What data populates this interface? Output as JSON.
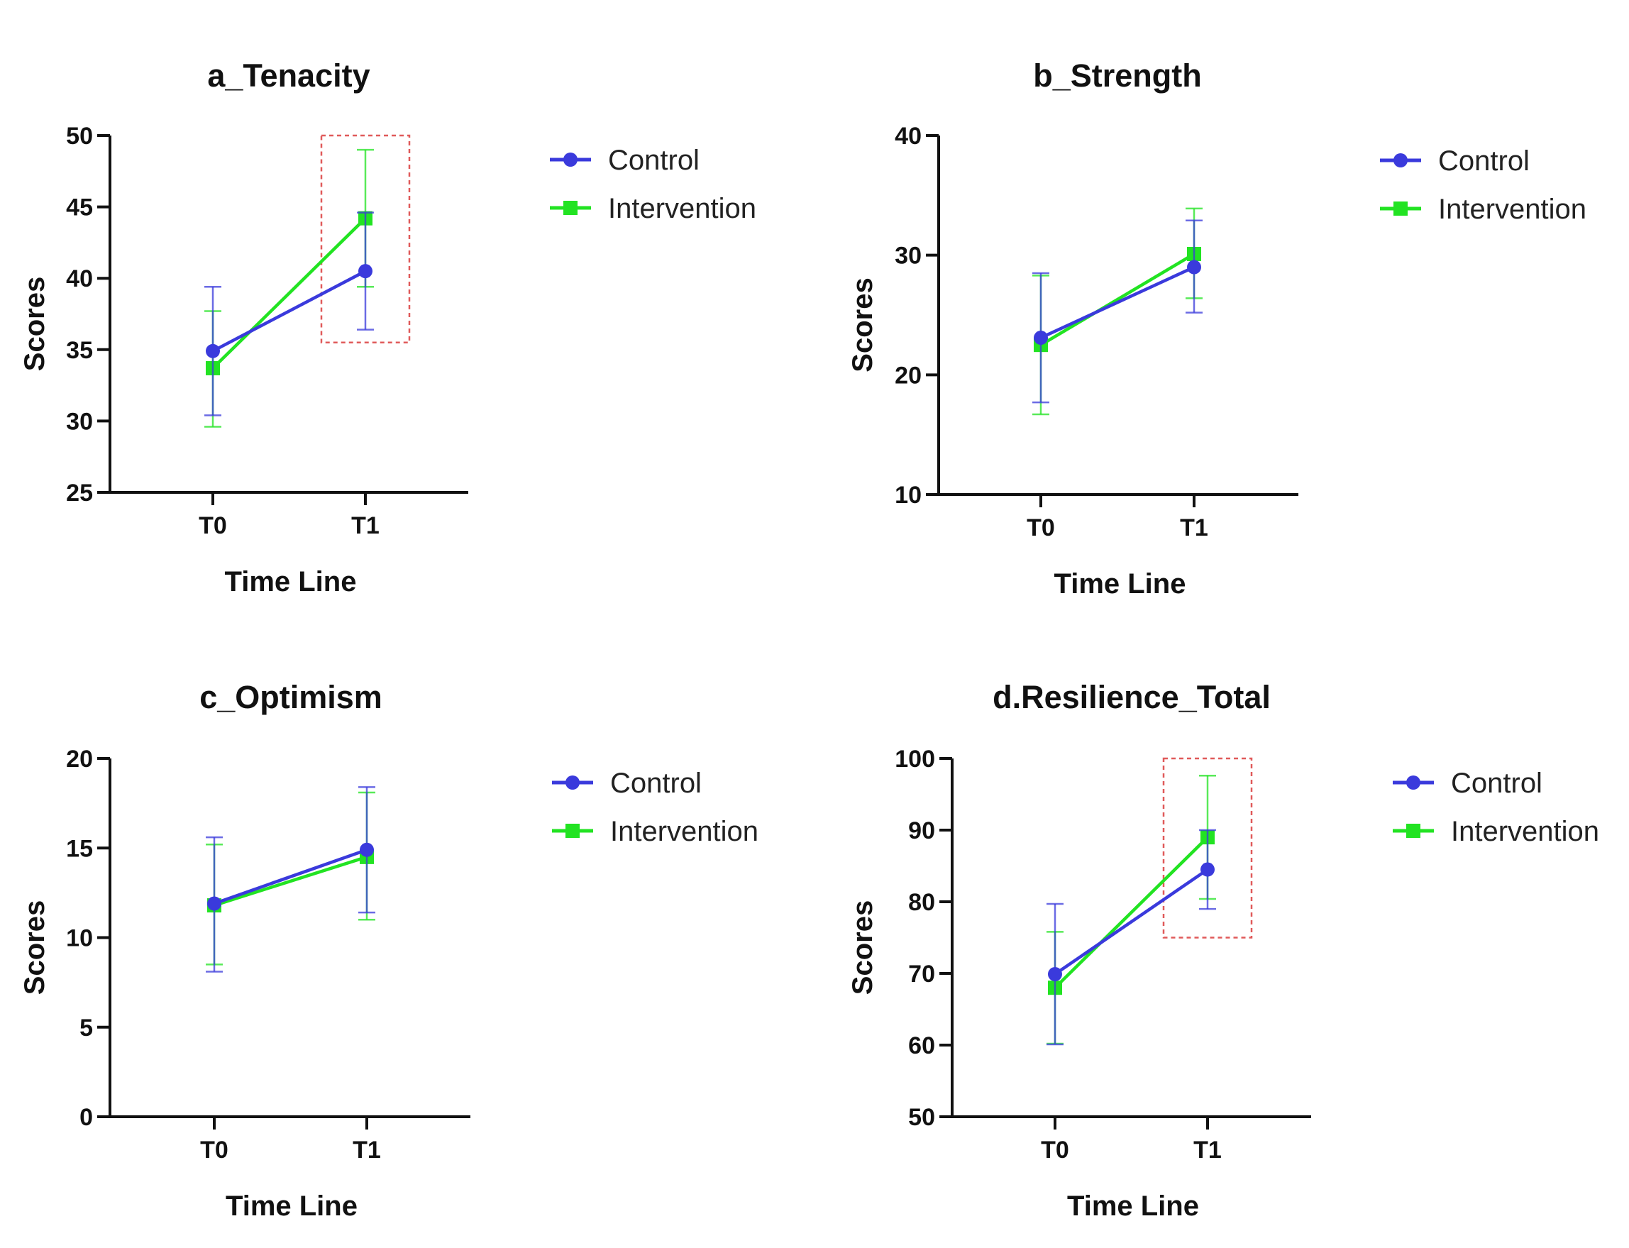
{
  "colors": {
    "control": "#3a3adc",
    "intervention": "#22e322",
    "axis": "#111111",
    "highlight_box": "#e05a5a"
  },
  "chart_data": [
    {
      "type": "line",
      "title": "a_Tenacity",
      "xlabel": "Time Line",
      "ylabel": "Scores",
      "categories": [
        "T0",
        "T1"
      ],
      "ylim": [
        25,
        50
      ],
      "yticks": [
        25,
        30,
        35,
        40,
        45,
        50
      ],
      "legend": "right",
      "series": [
        {
          "name": "Control",
          "marker": "circle",
          "values": [
            34.9,
            40.5
          ],
          "err_low": [
            30.4,
            36.4
          ],
          "err_high": [
            39.4,
            44.6
          ]
        },
        {
          "name": "Intervention",
          "marker": "square",
          "values": [
            33.7,
            44.2
          ],
          "err_low": [
            29.6,
            39.4
          ],
          "err_high": [
            37.7,
            49.0
          ]
        }
      ],
      "highlight": {
        "category": "T1",
        "y_range": [
          35.5,
          50
        ]
      }
    },
    {
      "type": "line",
      "title": "b_Strength",
      "xlabel": "Time Line",
      "ylabel": "Scores",
      "categories": [
        "T0",
        "T1"
      ],
      "ylim": [
        10,
        40
      ],
      "yticks": [
        10,
        20,
        30,
        40
      ],
      "legend": "right",
      "series": [
        {
          "name": "Control",
          "marker": "circle",
          "values": [
            23.1,
            29.0
          ],
          "err_low": [
            17.7,
            25.2
          ],
          "err_high": [
            28.5,
            32.9
          ]
        },
        {
          "name": "Intervention",
          "marker": "square",
          "values": [
            22.5,
            30.1
          ],
          "err_low": [
            16.7,
            26.4
          ],
          "err_high": [
            28.3,
            33.9
          ]
        }
      ]
    },
    {
      "type": "line",
      "title": "c_Optimism",
      "xlabel": "Time Line",
      "ylabel": "Scores",
      "categories": [
        "T0",
        "T1"
      ],
      "ylim": [
        0,
        20
      ],
      "yticks": [
        0,
        5,
        10,
        15,
        20
      ],
      "legend": "right",
      "series": [
        {
          "name": "Control",
          "marker": "circle",
          "values": [
            11.9,
            14.9
          ],
          "err_low": [
            8.1,
            11.4
          ],
          "err_high": [
            15.6,
            18.4
          ]
        },
        {
          "name": "Intervention",
          "marker": "square",
          "values": [
            11.8,
            14.5
          ],
          "err_low": [
            8.5,
            11.0
          ],
          "err_high": [
            15.2,
            18.1
          ]
        }
      ]
    },
    {
      "type": "line",
      "title": "d.Resilience_Total",
      "xlabel": "Time Line",
      "ylabel": "Scores",
      "categories": [
        "T0",
        "T1"
      ],
      "ylim": [
        50,
        100
      ],
      "yticks": [
        50,
        60,
        70,
        80,
        90,
        100
      ],
      "legend": "right",
      "series": [
        {
          "name": "Control",
          "marker": "circle",
          "values": [
            69.9,
            84.5
          ],
          "err_low": [
            60.1,
            79.0
          ],
          "err_high": [
            79.7,
            90.0
          ]
        },
        {
          "name": "Intervention",
          "marker": "square",
          "values": [
            68.0,
            89.0
          ],
          "err_low": [
            60.2,
            80.4
          ],
          "err_high": [
            75.8,
            97.6
          ]
        }
      ],
      "highlight": {
        "category": "T1",
        "y_range": [
          75,
          100
        ]
      }
    }
  ]
}
